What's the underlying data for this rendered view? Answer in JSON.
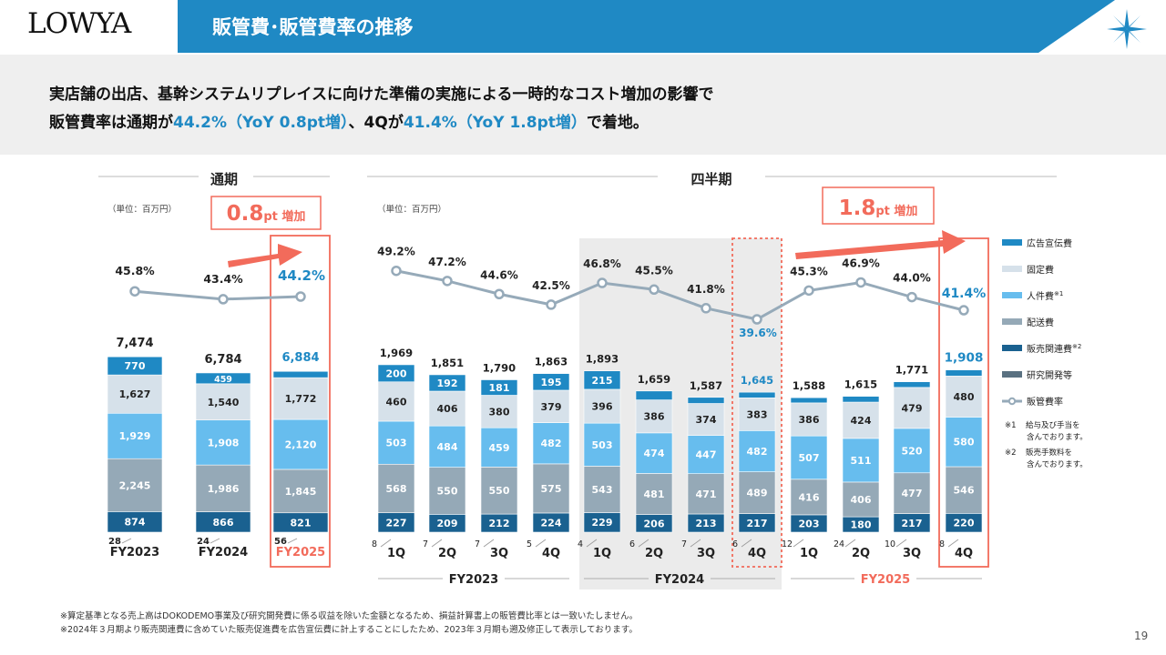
{
  "header": {
    "logo": "LOWYA",
    "title": "販管費･販管費率の推移"
  },
  "summary": {
    "line1": "実店舗の出店、基幹システムリプレイスに向けた準備の実施による一時的なコスト増加の影響で",
    "line2_parts": [
      "販管費率は通期が",
      "44.2%（YoY 0.8pt増）",
      "、4Qが",
      "41.4%（YoY 1.8pt増）",
      "で着地。"
    ]
  },
  "footnotes": [
    "※算定基準となる売上高はDOKODEMO事業及び研究開発費に係る収益を除いた金額となるため、損益計算書上の販管費比率とは一致いたしません。",
    "※2024年３月期より販売関連費に含めていた販売促進費を広告宣伝費に計上することにしたため、2023年３月期も遡及修正して表示しております。"
  ],
  "page_number": "19",
  "colors": {
    "brand_blue": "#1f89c4",
    "highlight_red": "#f26b5b",
    "advertising": "#1f89c4",
    "fixed": "#d6e1ea",
    "personnel": "#67bdee",
    "shipping": "#95a9b7",
    "sales_related": "#1a6190",
    "rnd": "#5a7181",
    "rate_line": "#96aab9"
  },
  "chart_data": [
    {
      "type": "bar",
      "panel_title": "通期",
      "unit_note": "（単位：百万円）",
      "callout": {
        "big": "0.8",
        "small": "pt 増加"
      },
      "categories": [
        "FY2023",
        "FY2024",
        "FY2025"
      ],
      "highlight_category": "FY2025",
      "stacked": true,
      "series": [
        {
          "name": "研究開発等",
          "values": [
            28,
            24,
            56
          ]
        },
        {
          "name": "販売関連費",
          "values": [
            874,
            866,
            821
          ]
        },
        {
          "name": "配送費",
          "values": [
            2245,
            1986,
            1845
          ]
        },
        {
          "name": "人件費",
          "values": [
            1929,
            1908,
            2120
          ]
        },
        {
          "name": "固定費",
          "values": [
            1627,
            1540,
            1772
          ]
        },
        {
          "name": "広告宣伝費",
          "values": [
            770,
            459,
            267
          ]
        }
      ],
      "totals": [
        "7,474",
        "6,784",
        "6,884"
      ],
      "line": {
        "name": "販管費率",
        "values": [
          45.8,
          43.4,
          44.2
        ],
        "labels": [
          "45.8%",
          "43.4%",
          "44.2%"
        ]
      }
    },
    {
      "type": "bar",
      "panel_title": "四半期",
      "unit_note": "（単位：百万円）",
      "callout": {
        "big": "1.8",
        "small": "pt 増加"
      },
      "categories": [
        "1Q",
        "2Q",
        "3Q",
        "4Q",
        "1Q",
        "2Q",
        "3Q",
        "4Q",
        "1Q",
        "2Q",
        "3Q",
        "4Q"
      ],
      "groups": [
        {
          "label": "FY2023",
          "span": [
            0,
            3
          ]
        },
        {
          "label": "FY2024",
          "span": [
            4,
            7
          ]
        },
        {
          "label": "FY2025",
          "span": [
            8,
            11
          ]
        }
      ],
      "stacked": true,
      "series": [
        {
          "name": "研究開発等",
          "values": [
            8,
            7,
            7,
            5,
            4,
            6,
            7,
            6,
            12,
            24,
            10,
            8
          ]
        },
        {
          "name": "販売関連費",
          "values": [
            227,
            209,
            212,
            224,
            229,
            206,
            213,
            217,
            203,
            180,
            217,
            220
          ]
        },
        {
          "name": "配送費",
          "values": [
            568,
            550,
            550,
            575,
            543,
            481,
            471,
            489,
            416,
            406,
            477,
            546
          ]
        },
        {
          "name": "人件費",
          "values": [
            503,
            484,
            459,
            482,
            503,
            474,
            447,
            482,
            507,
            511,
            520,
            580
          ]
        },
        {
          "name": "固定費",
          "values": [
            460,
            406,
            380,
            379,
            396,
            386,
            374,
            383,
            386,
            424,
            479,
            480
          ]
        },
        {
          "name": "広告宣伝費",
          "values": [
            200,
            192,
            181,
            195,
            215,
            104,
            72,
            66,
            61,
            68,
            66,
            71
          ]
        }
      ],
      "totals": [
        "1,969",
        "1,851",
        "1,790",
        "1,863",
        "1,893",
        "1,659",
        "1,587",
        "1,645",
        "1,588",
        "1,615",
        "1,771",
        "1,908"
      ],
      "line": {
        "name": "販管費率",
        "values": [
          49.2,
          47.2,
          44.6,
          42.5,
          46.8,
          45.5,
          41.8,
          39.6,
          45.3,
          46.9,
          44.0,
          41.4
        ],
        "labels": [
          "49.2%",
          "47.2%",
          "44.6%",
          "42.5%",
          "46.8%",
          "45.5%",
          "41.8%",
          "39.6%",
          "45.3%",
          "46.9%",
          "44.0%",
          "41.4%"
        ]
      }
    }
  ],
  "legend": {
    "items": [
      {
        "name": "広告宣伝費",
        "color": "#1f89c4",
        "kind": "bar",
        "sup": ""
      },
      {
        "name": "固定費",
        "color": "#d6e1ea",
        "kind": "bar",
        "sup": ""
      },
      {
        "name": "人件費",
        "color": "#67bdee",
        "kind": "bar",
        "sup": "※1"
      },
      {
        "name": "配送費",
        "color": "#95a9b7",
        "kind": "bar",
        "sup": ""
      },
      {
        "name": "販売関連費",
        "color": "#1a6190",
        "kind": "bar",
        "sup": "※2"
      },
      {
        "name": "研究開発等",
        "color": "#5a7181",
        "kind": "bar",
        "sup": ""
      },
      {
        "name": "販管費率",
        "color": "#96aab9",
        "kind": "line",
        "sup": ""
      }
    ],
    "notes": [
      {
        "mark": "※1",
        "lines": [
          "給与及び手当を",
          "含んでおります。"
        ]
      },
      {
        "mark": "※2",
        "lines": [
          "販売手数料を",
          "含んでおります。"
        ]
      }
    ]
  }
}
